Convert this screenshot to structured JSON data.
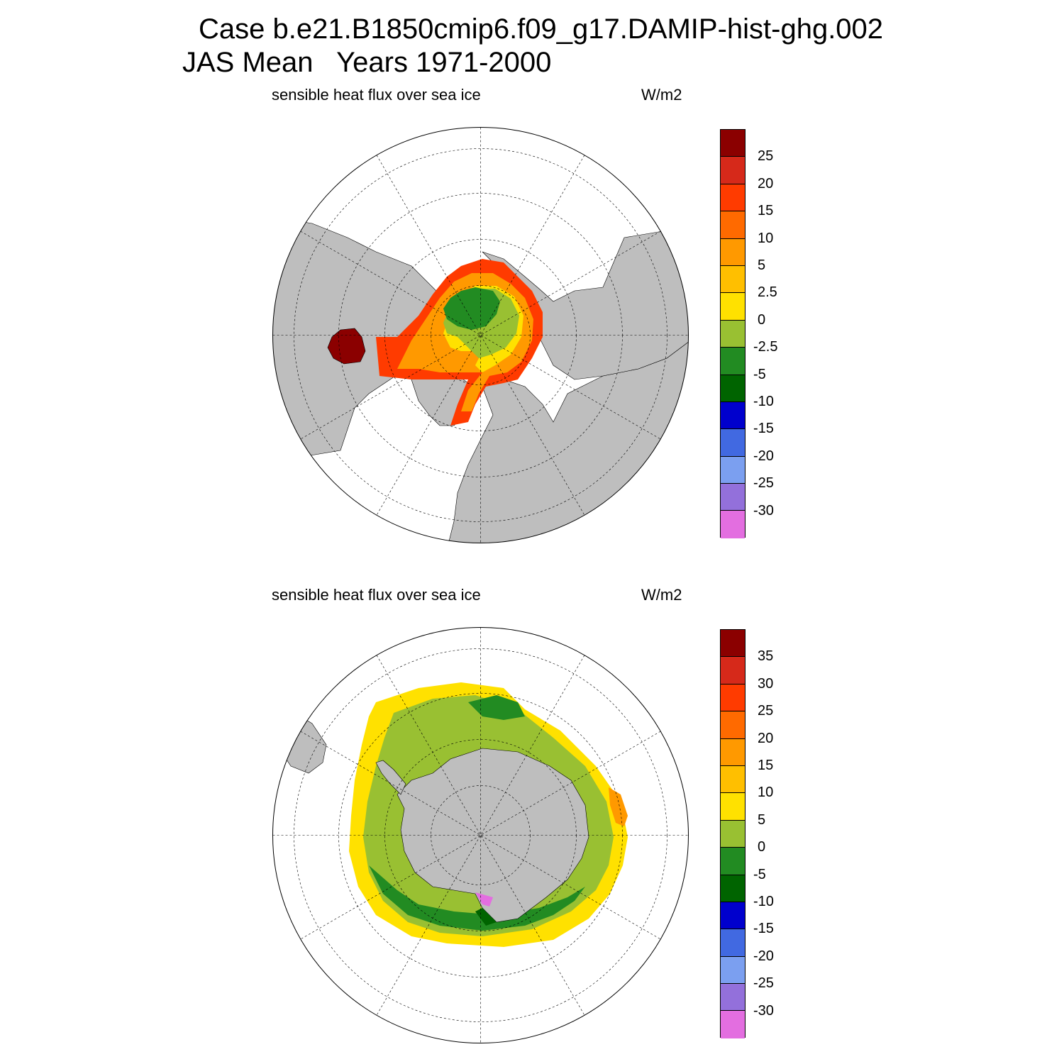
{
  "title_line1": "Case b.e21.B1850cmip6.f09_g17.DAMIP-hist-ghg.002",
  "title_line2": "JAS Mean   Years 1971-2000",
  "panels": {
    "north": {
      "title": "sensible heat flux over sea ice",
      "units": "W/m2",
      "colors": [
        "#8b0000",
        "#d6291a",
        "#ff3b00",
        "#ff6a00",
        "#ff9900",
        "#ffbf00",
        "#ffe100",
        "#99c032",
        "#228b22",
        "#006400",
        "#0000cd",
        "#4169e1",
        "#7b9ff0",
        "#9370db",
        "#e36ee0"
      ],
      "labels": [
        "25",
        "20",
        "15",
        "10",
        "5",
        "2.5",
        "0",
        "-2.5",
        "-5",
        "-10",
        "-15",
        "-20",
        "-25",
        "-30"
      ]
    },
    "south": {
      "title": "sensible heat flux over sea ice",
      "units": "W/m2",
      "colors": [
        "#8b0000",
        "#d6291a",
        "#ff3b00",
        "#ff6a00",
        "#ff9900",
        "#ffbf00",
        "#ffe100",
        "#99c032",
        "#228b22",
        "#006400",
        "#0000cd",
        "#4169e1",
        "#7b9ff0",
        "#9370db",
        "#e36ee0"
      ],
      "labels": [
        "35",
        "30",
        "25",
        "20",
        "15",
        "10",
        "5",
        "0",
        "-5",
        "-10",
        "-15",
        "-20",
        "-25",
        "-30"
      ]
    }
  },
  "land_color": "#bebebe",
  "ocean_color": "#ffffff"
}
